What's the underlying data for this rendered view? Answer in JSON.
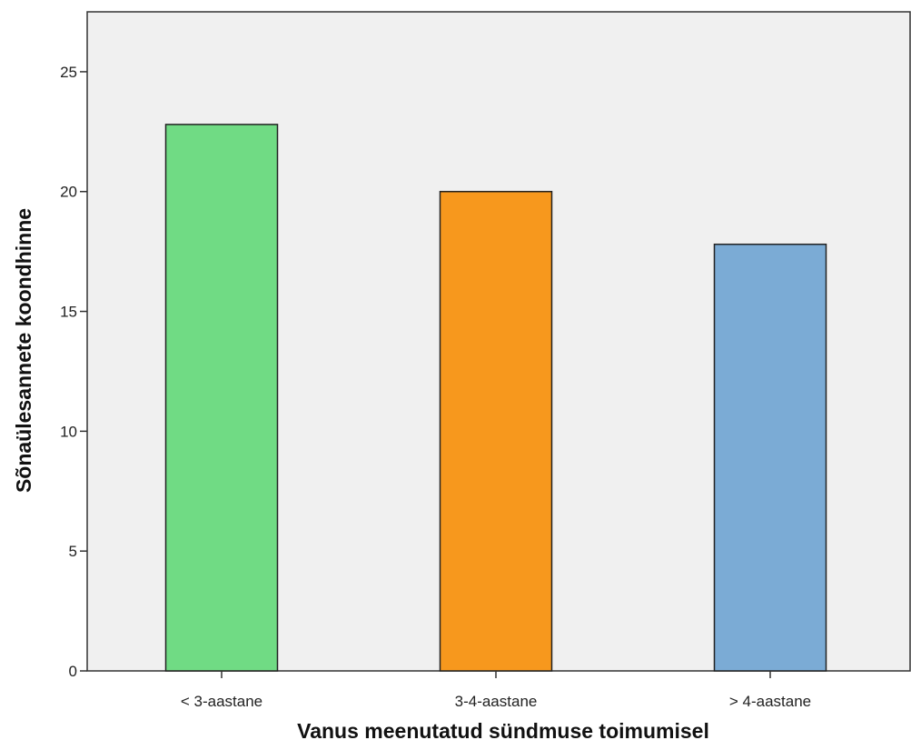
{
  "chart_data": {
    "type": "bar",
    "categories": [
      "< 3-aastane",
      "3-4-aastane",
      "> 4-aastane"
    ],
    "values": [
      22.8,
      20.0,
      17.8
    ],
    "colors": [
      "#70db84",
      "#f7981d",
      "#7babd5"
    ],
    "title": "",
    "xlabel": "Vanus meenutatud sündmuse toimumisel",
    "ylabel": "Sõnaülesannete koondhinne",
    "ylim": [
      0,
      27.5
    ],
    "yticks": [
      0,
      5,
      10,
      15,
      20,
      25
    ],
    "grid": false,
    "plot_background": "#f0f0f0",
    "bar_outline": "#222222"
  }
}
